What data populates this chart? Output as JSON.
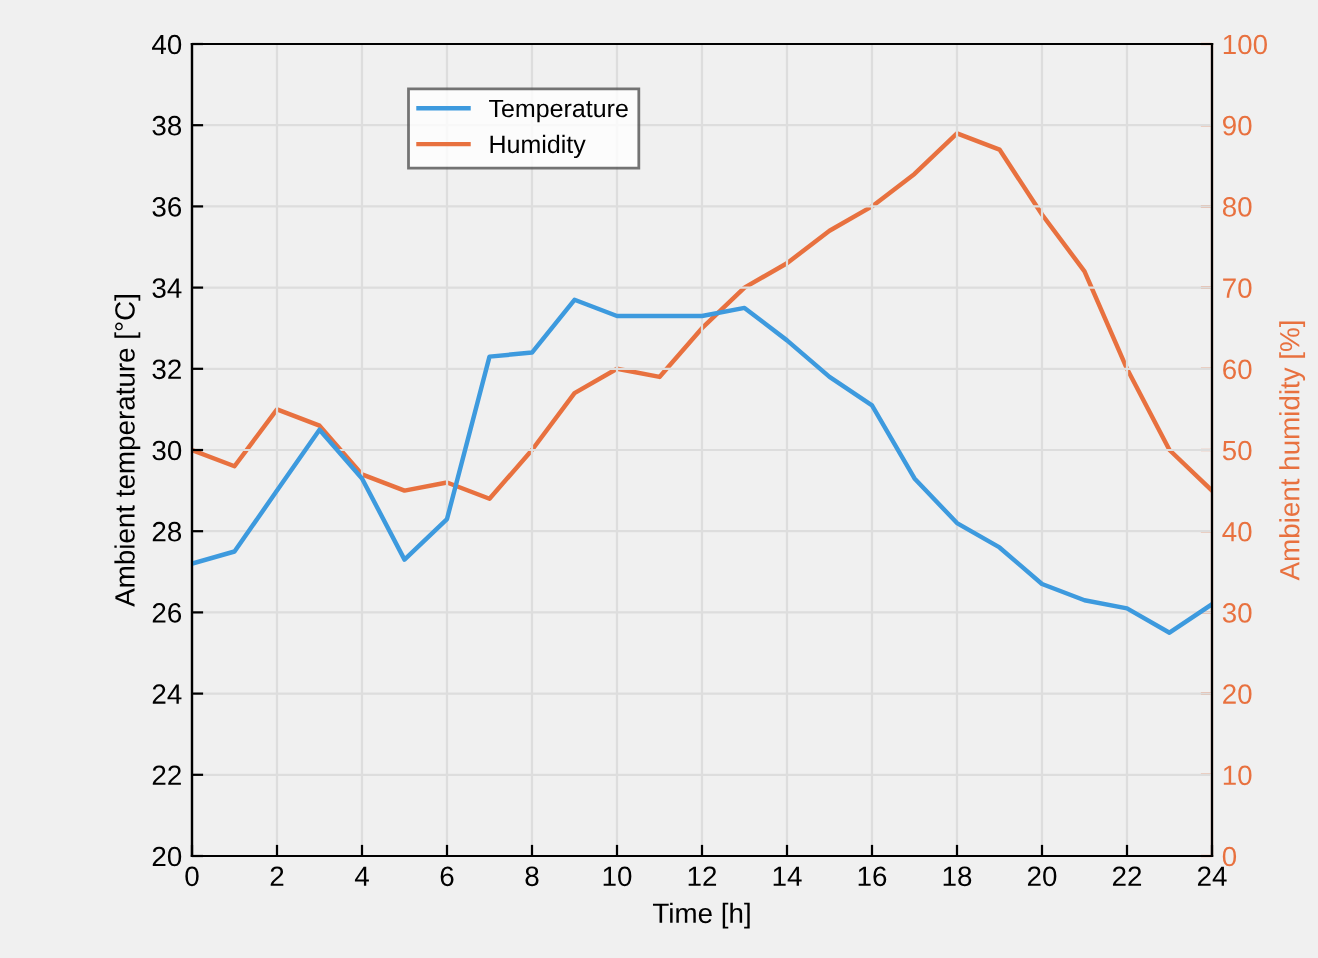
{
  "chart_data": {
    "type": "line",
    "xlabel": "Time [h]",
    "ylabel": "Ambient temperature [°C]",
    "y2label": "Ambient humidity [%]",
    "x": [
      0,
      1,
      2,
      3,
      4,
      5,
      6,
      7,
      8,
      9,
      10,
      11,
      12,
      13,
      14,
      15,
      16,
      17,
      18,
      19,
      20,
      21,
      22,
      23,
      24
    ],
    "series": [
      {
        "name": "Temperature",
        "color": "#3d9ade",
        "values": [
          27.2,
          27.5,
          29.0,
          30.5,
          29.3,
          27.3,
          28.3,
          32.3,
          32.4,
          33.7,
          33.3,
          33.3,
          33.3,
          33.5,
          32.7,
          31.8,
          31.1,
          29.3,
          28.2,
          27.6,
          26.7,
          26.3,
          26.1,
          25.5,
          26.2
        ]
      },
      {
        "name": "Humidity",
        "color": "#e8713f",
        "axis": "y2",
        "values": [
          50,
          48,
          55,
          53,
          47,
          45,
          46,
          44,
          50,
          57,
          60,
          59,
          65,
          70,
          73,
          77,
          80,
          84,
          89,
          87,
          79,
          72,
          60,
          50,
          45
        ]
      }
    ],
    "xlim": [
      0,
      24
    ],
    "xticks": [
      0,
      2,
      4,
      6,
      8,
      10,
      12,
      14,
      16,
      18,
      20,
      22,
      24
    ],
    "ylim": [
      20,
      40
    ],
    "yticks": [
      20,
      22,
      24,
      26,
      28,
      30,
      32,
      34,
      36,
      38,
      40
    ],
    "y2lim": [
      0,
      100
    ],
    "y2ticks": [
      0,
      10,
      20,
      30,
      40,
      50,
      60,
      70,
      80,
      90,
      100
    ],
    "grid": true,
    "legend": "top left"
  }
}
